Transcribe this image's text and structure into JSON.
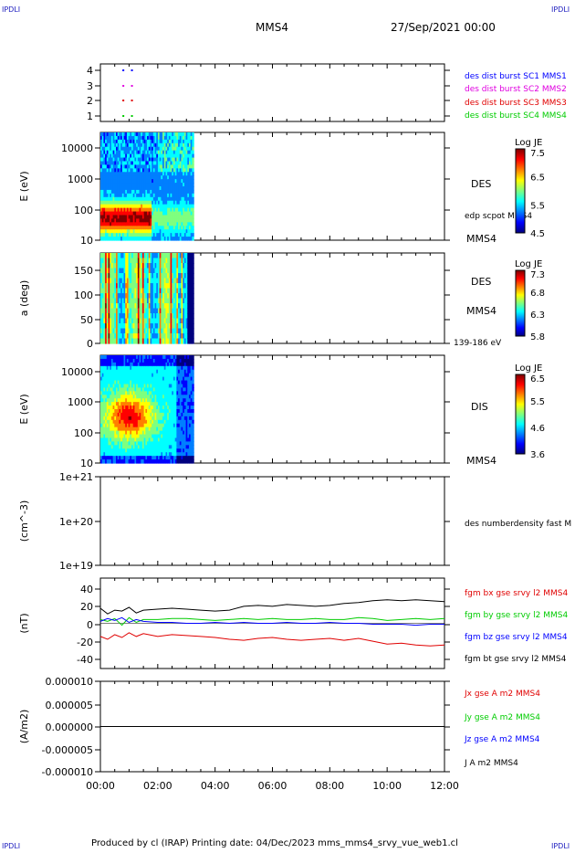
{
  "header": {
    "spacecraft": "MMS4",
    "date": "27/Sep/2021 00:00",
    "corner_label": "IPDLI"
  },
  "footer": {
    "text": "Produced by cl (IRAP)   Printing date: 04/Dec/2023   mms_mms4_srvy_vue_web1.cl"
  },
  "colors": {
    "blue": "#0000ff",
    "magenta": "#e000e0",
    "red": "#e00000",
    "green": "#00cc00",
    "black": "#000000"
  },
  "chart_data": [
    {
      "id": "burst",
      "type": "scatter",
      "ylabel": "",
      "yticks": [
        "1",
        "2",
        "3",
        "4"
      ],
      "ylim": [
        0.6,
        4.4
      ],
      "legend": [
        "des dist burst SC1 MMS1",
        "des dist burst SC2 MMS2",
        "des dist burst SC3 MMS3",
        "des dist burst SC4 MMS4"
      ],
      "series": [
        {
          "name": "des dist burst SC1 MMS1",
          "y": 4,
          "x_hours": [
            0.8,
            1.1
          ],
          "color": "blue"
        },
        {
          "name": "des dist burst SC2 MMS2",
          "y": 3,
          "x_hours": [
            0.8,
            1.1
          ],
          "color": "magenta"
        },
        {
          "name": "des dist burst SC3 MMS3",
          "y": 2,
          "x_hours": [
            0.8,
            1.1
          ],
          "color": "red"
        },
        {
          "name": "des dist burst SC4 MMS4",
          "y": 1,
          "x_hours": [
            0.8,
            1.1
          ],
          "color": "green"
        }
      ]
    },
    {
      "id": "des_energy",
      "type": "heatmap",
      "ylabel": "E (eV)",
      "yticks": [
        "10",
        "100",
        "1000",
        "10000"
      ],
      "scale": "log",
      "ylim": [
        10,
        30000
      ],
      "data_end_hours": 3.25,
      "labels": [
        "DES",
        "edp scpot MMS4",
        "MMS4"
      ],
      "colorbar": {
        "title": "Log JE",
        "ticks": [
          "7.5",
          "6.5",
          "5.5",
          "4.5"
        ],
        "min": 4.5,
        "max": 7.7
      }
    },
    {
      "id": "des_pitch",
      "type": "heatmap",
      "ylabel": "a (deg)",
      "yticks": [
        "0",
        "50",
        "100",
        "150"
      ],
      "ylim": [
        0,
        180
      ],
      "data_end_hours": 3.25,
      "labels": [
        "DES",
        "MMS4",
        "139-186 eV"
      ],
      "colorbar": {
        "title": "Log JE",
        "ticks": [
          "7.3",
          "6.8",
          "6.3",
          "5.8"
        ],
        "min": 5.8,
        "max": 7.5
      }
    },
    {
      "id": "dis_energy",
      "type": "heatmap",
      "ylabel": "E (eV)",
      "yticks": [
        "10",
        "100",
        "1000",
        "10000"
      ],
      "scale": "log",
      "ylim": [
        10,
        30000
      ],
      "data_end_hours": 3.25,
      "labels": [
        "DIS",
        "MMS4"
      ],
      "colorbar": {
        "title": "Log JE",
        "ticks": [
          "6.5",
          "5.5",
          "4.6",
          "3.6"
        ],
        "min": 3.6,
        "max": 6.8
      }
    },
    {
      "id": "density",
      "type": "line",
      "ylabel": "(cm^-3)",
      "yticks": [
        "1e+19",
        "1e+20",
        "1e+21"
      ],
      "scale": "log",
      "ylim": [
        1e+19,
        1e+21
      ],
      "legend": [
        "des numberdensity fast M"
      ],
      "series": []
    },
    {
      "id": "fgm",
      "type": "line",
      "ylabel": "(nT)",
      "yticks": [
        "-40",
        "-20",
        "0",
        "20",
        "40"
      ],
      "ylim": [
        -48,
        48
      ],
      "legend": [
        "fgm bx gse srvy l2 MMS4",
        "fgm by gse srvy l2 MMS4",
        "fgm bz gse srvy l2 MMS4",
        "fgm bt gse srvy l2 MMS4"
      ],
      "series": [
        {
          "name": "fgm bx gse srvy l2 MMS4",
          "color": "red",
          "x": [
            0,
            0.25,
            0.5,
            0.75,
            1,
            1.25,
            1.5,
            2,
            2.5,
            3,
            3.5,
            4,
            4.5,
            5,
            5.5,
            6,
            6.5,
            7,
            7.5,
            8,
            8.5,
            9,
            9.5,
            10,
            10.5,
            11,
            11.5,
            12
          ],
          "y": [
            -14,
            -17,
            -12,
            -15,
            -10,
            -14,
            -11,
            -14,
            -12,
            -13,
            -14,
            -15,
            -17,
            -18,
            -16,
            -15,
            -17,
            -18,
            -17,
            -16,
            -18,
            -16,
            -19,
            -22,
            -21,
            -23,
            -24,
            -23
          ]
        },
        {
          "name": "fgm by gse srvy l2 MMS4",
          "color": "green",
          "x": [
            0,
            0.25,
            0.5,
            0.75,
            1,
            1.25,
            1.5,
            2,
            2.5,
            3,
            3.5,
            4,
            4.5,
            5,
            5.5,
            6,
            6.5,
            7,
            7.5,
            8,
            8.5,
            9,
            9.5,
            10,
            10.5,
            11,
            11.5,
            12
          ],
          "y": [
            4,
            2,
            5,
            -2,
            6,
            1,
            4,
            4,
            5,
            5,
            4,
            3,
            4,
            5,
            4,
            5,
            4,
            4,
            5,
            4,
            4,
            6,
            5,
            3,
            4,
            5,
            4,
            5
          ]
        },
        {
          "name": "fgm bz gse srvy l2 MMS4",
          "color": "blue",
          "x": [
            0,
            0.25,
            0.5,
            0.75,
            1,
            1.25,
            1.5,
            2,
            2.5,
            3,
            3.5,
            4,
            4.5,
            5,
            5.5,
            6,
            6.5,
            7,
            7.5,
            8,
            8.5,
            9,
            9.5,
            10,
            10.5,
            11,
            11.5,
            12
          ],
          "y": [
            2,
            5,
            3,
            6,
            1,
            4,
            2,
            1,
            1,
            0,
            0,
            1,
            0,
            1,
            0,
            0,
            1,
            0,
            0,
            1,
            0,
            0,
            -1,
            -1,
            -1,
            -2,
            -1,
            -1
          ]
        },
        {
          "name": "fgm bt gse srvy l2 MMS4",
          "color": "black",
          "x": [
            0,
            0.25,
            0.5,
            0.75,
            1,
            1.25,
            1.5,
            2,
            2.5,
            3,
            3.5,
            4,
            4.5,
            5,
            5.5,
            6,
            6.5,
            7,
            7.5,
            8,
            8.5,
            9,
            9.5,
            10,
            10.5,
            11,
            11.5,
            12
          ],
          "y": [
            16,
            10,
            14,
            13,
            17,
            11,
            14,
            15,
            16,
            15,
            14,
            13,
            14,
            18,
            19,
            18,
            20,
            19,
            18,
            19,
            21,
            22,
            24,
            25,
            24,
            25,
            24,
            23
          ]
        }
      ]
    },
    {
      "id": "current",
      "type": "line",
      "ylabel": "(A/m2)",
      "yticks": [
        "-0.000010",
        "-0.000005",
        "0.000000",
        "0.000005",
        "0.000010"
      ],
      "ylim": [
        -1e-05,
        1e-05
      ],
      "legend": [
        "Jx gse A m2 MMS4",
        "Jy gse A m2 MMS4",
        "Jz gse A m2 MMS4",
        "J A m2 MMS4"
      ],
      "series": [
        {
          "name": "J A m2 MMS4",
          "color": "black",
          "x": [
            0,
            12
          ],
          "y": [
            0,
            0
          ]
        }
      ]
    }
  ],
  "xaxis": {
    "ticks": [
      "00:00",
      "02:00",
      "04:00",
      "06:00",
      "08:00",
      "10:00",
      "12:00"
    ],
    "range_hours": [
      0,
      12
    ]
  }
}
